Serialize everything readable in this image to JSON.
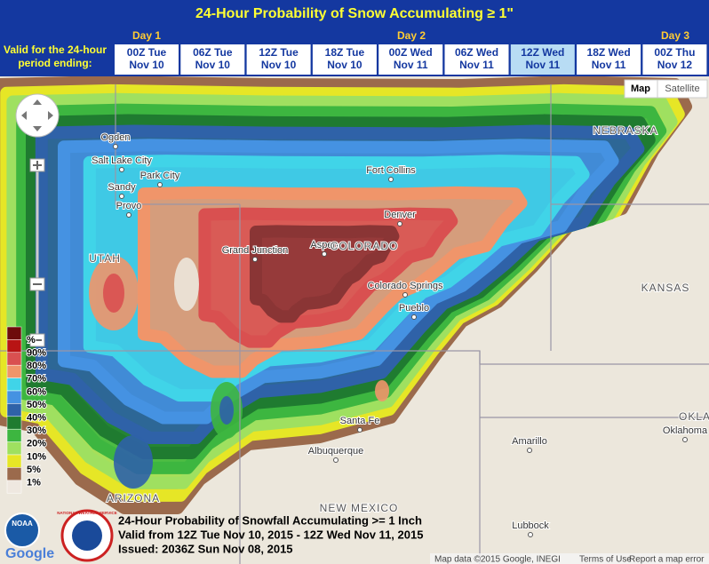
{
  "header": {
    "title": "24-Hour Probability of Snow Accumulating ≥ 1\"",
    "valid_label": [
      "Valid for the 24-hour",
      "period ending:"
    ],
    "days": [
      "Day 1",
      "Day 2",
      "Day 3"
    ],
    "tabs": [
      {
        "time": "00Z Tue",
        "date": "Nov 10"
      },
      {
        "time": "06Z Tue",
        "date": "Nov 10"
      },
      {
        "time": "12Z Tue",
        "date": "Nov 10"
      },
      {
        "time": "18Z Tue",
        "date": "Nov 10"
      },
      {
        "time": "00Z Wed",
        "date": "Nov 11"
      },
      {
        "time": "06Z Wed",
        "date": "Nov 11"
      },
      {
        "time": "12Z Wed",
        "date": "Nov 11"
      },
      {
        "time": "18Z Wed",
        "date": "Nov 11"
      },
      {
        "time": "00Z Thu",
        "date": "Nov 12"
      }
    ],
    "selected_tab": 6
  },
  "map_controls": {
    "map": "Map",
    "satellite": "Satellite"
  },
  "legend": [
    "%",
    "90%",
    "80%",
    "70%",
    "60%",
    "50%",
    "40%",
    "30%",
    "20%",
    "10%",
    "5%",
    "1%"
  ],
  "places": [
    "Ogden",
    "Salt Lake City",
    "Park City",
    "Sandy",
    "Provo",
    "Fort Collins",
    "Denver",
    "Grand Junction",
    "Aspen",
    "Colorado Springs",
    "Pueblo",
    "Santa Fe",
    "Albuquerque",
    "Amarillo",
    "Oklahoma",
    "Lubbock"
  ],
  "states": [
    "NEBRASKA",
    "KANSAS",
    "COLORADO",
    "UTAH",
    "NEW MEXICO",
    "ARIZONA",
    "OKLA"
  ],
  "caption": [
    "24-Hour Probability of Snowfall Accumulating >= 1 Inch",
    "Valid from 12Z Tue Nov 10, 2015 - 12Z Wed Nov 11, 2015",
    "Issued: 2036Z Sun Nov 08, 2015"
  ],
  "logos": {
    "noaa": "NOAA",
    "nws": "NATIONAL WEATHER SERVICE",
    "google": "Google"
  },
  "footer": [
    "Map data ©2015 Google, INEGI",
    "Terms of Use",
    "Report a map error"
  ]
}
